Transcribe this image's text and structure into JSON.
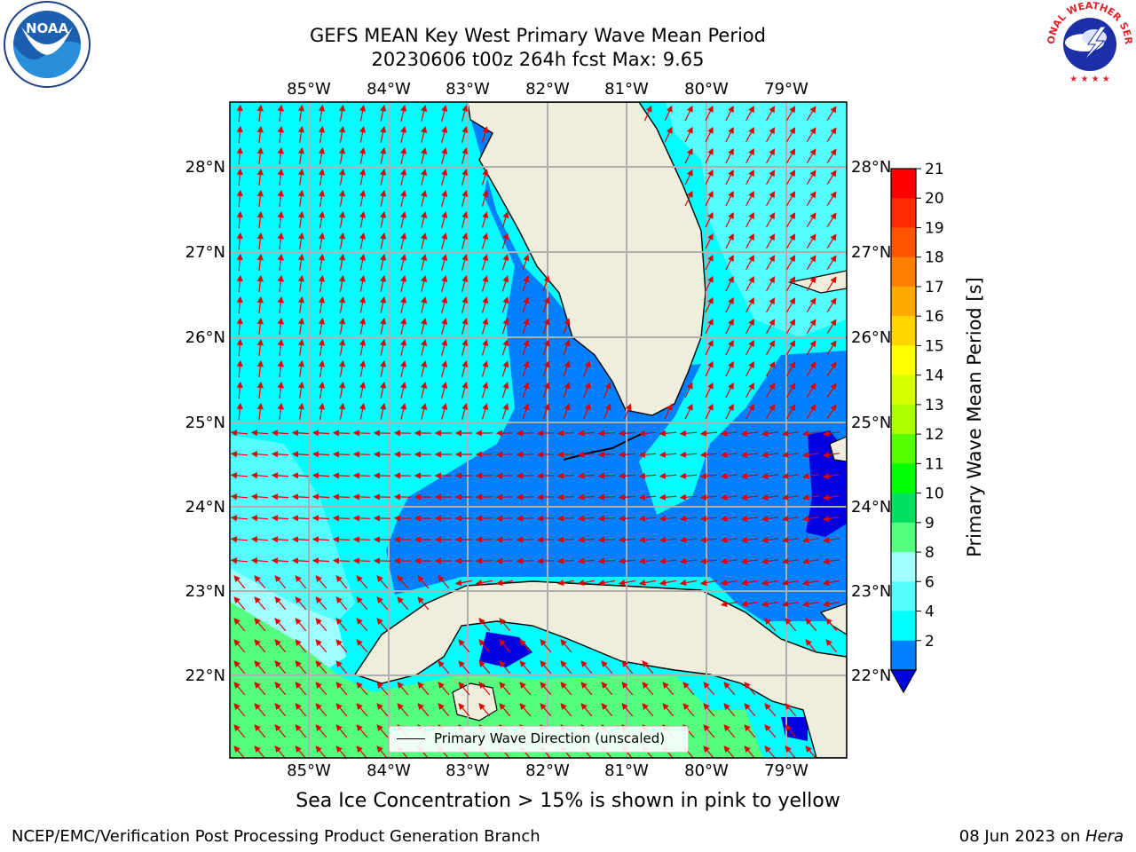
{
  "title_line1": "GEFS MEAN Key West Primary Wave Mean Period",
  "title_line2": "20230606 t00z 264h fcst   Max: 9.65",
  "lon_labels": [
    "85°W",
    "84°W",
    "83°W",
    "82°W",
    "81°W",
    "80°W",
    "79°W"
  ],
  "lat_labels": [
    "28°N",
    "27°N",
    "26°N",
    "25°N",
    "24°N",
    "23°N",
    "22°N"
  ],
  "colorbar": {
    "label": "Primary Wave Mean Period [s]",
    "ticks": [
      "21",
      "20",
      "19",
      "18",
      "17",
      "16",
      "15",
      "14",
      "13",
      "12",
      "11",
      "10",
      "9",
      "8",
      "6",
      "4",
      "2"
    ],
    "colors": [
      "#ff0000",
      "#ff2a00",
      "#ff5500",
      "#ff8000",
      "#ffaa00",
      "#ffd400",
      "#ffff00",
      "#d4ff00",
      "#aaff00",
      "#55ff00",
      "#00ff00",
      "#00e060",
      "#55ff80",
      "#a0ffff",
      "#55ffff",
      "#00ffff",
      "#0080ff"
    ],
    "extend_color": "#0000e0"
  },
  "legend": "Primary Wave Direction (unscaled)",
  "note": "Sea Ice Concentration > 15% is shown in pink to yellow",
  "credit": "NCEP/EMC/Verification Post Processing Product Generation Branch",
  "date_text": "08 Jun 2023 on ",
  "date_host": "Hera",
  "logos": {
    "left": "NOAA",
    "right": "NATIONAL WEATHER SERVICE"
  }
}
